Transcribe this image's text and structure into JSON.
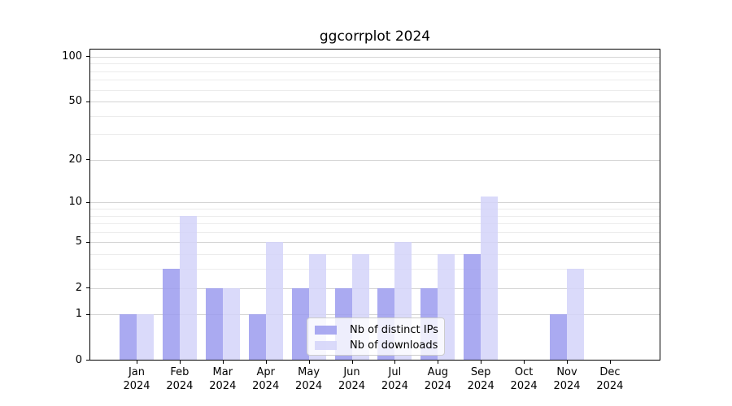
{
  "title": "ggcorrplot 2024",
  "chart_data": {
    "type": "bar",
    "title": "ggcorrplot 2024",
    "y_scale": "log1p",
    "grid": "on",
    "categories": [
      "Jan",
      "Feb",
      "Mar",
      "Apr",
      "May",
      "Jun",
      "Jul",
      "Aug",
      "Sep",
      "Oct",
      "Nov",
      "Dec"
    ],
    "x_year": "2024",
    "series": [
      {
        "name": "Nb of distinct IPs",
        "color": "#9b9bef",
        "alpha": 0.85,
        "values": [
          1,
          3,
          2,
          1,
          2,
          2,
          2,
          2,
          4,
          0,
          1,
          0
        ]
      },
      {
        "name": "Nb of downloads",
        "color": "#d3d3f9",
        "alpha": 0.85,
        "values": [
          1,
          8,
          2,
          5,
          4,
          4,
          5,
          4,
          11,
          0,
          3,
          0
        ]
      }
    ],
    "y_ticks": [
      0,
      1,
      2,
      5,
      10,
      20,
      50,
      100
    ],
    "y_minor_gridlines": [
      3,
      4,
      6,
      7,
      8,
      9,
      30,
      40,
      60,
      70,
      80,
      90
    ],
    "ylim": [
      0,
      112
    ],
    "legend_position": "lower center-right inside plot",
    "colors": {
      "grid_major": "#d4d4d4",
      "grid_minor": "#ececec",
      "axis": "#000000",
      "background": "#ffffff"
    }
  }
}
